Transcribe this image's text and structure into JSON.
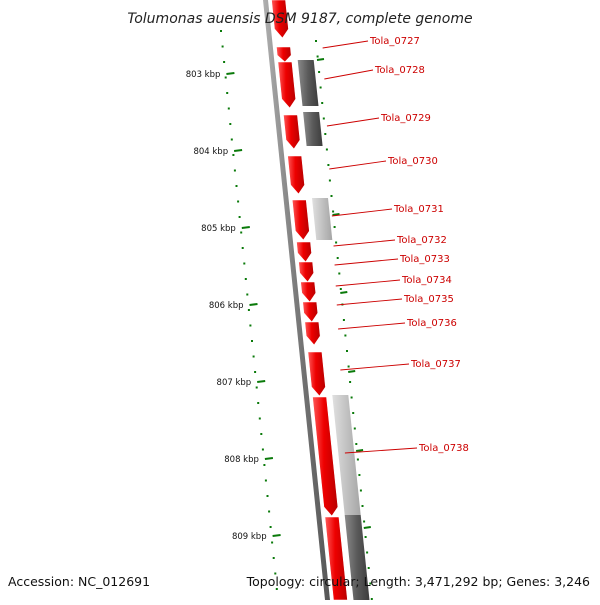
{
  "title": "Tolumonas auensis DSM 9187, complete genome",
  "accession": "Accession: NC_012691",
  "topology": "Topology: circular; Length: 3,471,292 bp; Genes: 3,246",
  "colors": {
    "gene": "#e60000",
    "gene_label": "#cc0000",
    "tick": "#0a7a0a",
    "backbone": "#7f7f7f",
    "gray_dark": "#5e5e5e",
    "gray_light": "#bdbdbd"
  },
  "kbp_labels": [
    "803 kbp",
    "804 kbp",
    "805 kbp",
    "806 kbp",
    "807 kbp",
    "808 kbp",
    "809 kbp"
  ],
  "genes": [
    {
      "label": "Tola_0727"
    },
    {
      "label": "Tola_0728"
    },
    {
      "label": "Tola_0729"
    },
    {
      "label": "Tola_0730"
    },
    {
      "label": "Tola_0731"
    },
    {
      "label": "Tola_0732"
    },
    {
      "label": "Tola_0733"
    },
    {
      "label": "Tola_0734"
    },
    {
      "label": "Tola_0735"
    },
    {
      "label": "Tola_0736"
    },
    {
      "label": "Tola_0737"
    },
    {
      "label": "Tola_0738"
    }
  ]
}
